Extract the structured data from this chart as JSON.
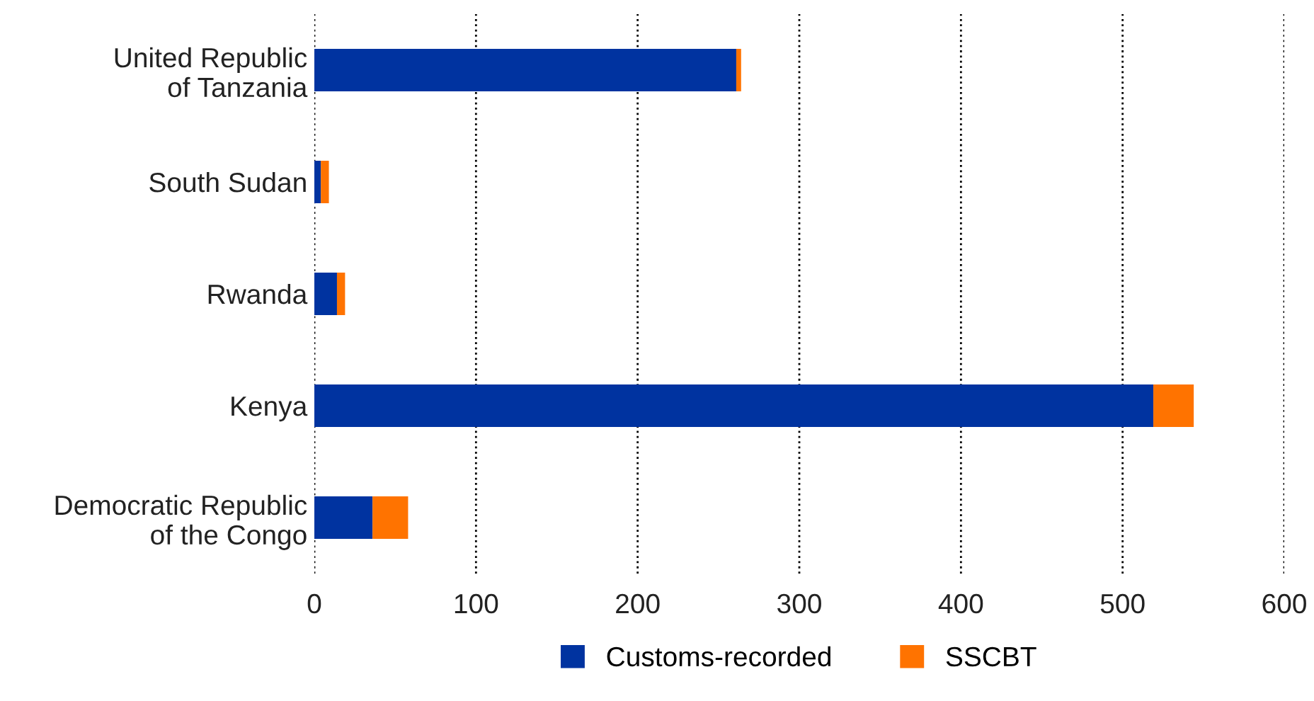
{
  "chart_data": {
    "type": "bar",
    "orientation": "horizontal",
    "stacked": true,
    "categories": [
      "United Republic\nof Tanzania",
      "South Sudan",
      "Rwanda",
      "Kenya",
      "Democratic Republic\nof the Congo"
    ],
    "series": [
      {
        "name": "Customs-recorded",
        "color": "#0033a0",
        "values": [
          261,
          4,
          14,
          519,
          36
        ]
      },
      {
        "name": "SSCBT",
        "color": "#ff7300",
        "values": [
          3,
          5,
          5,
          25,
          22
        ]
      }
    ],
    "xlim": [
      0,
      600
    ],
    "xticks": [
      0,
      100,
      200,
      300,
      400,
      500,
      600
    ],
    "grid": "x",
    "legend": "bottom"
  }
}
